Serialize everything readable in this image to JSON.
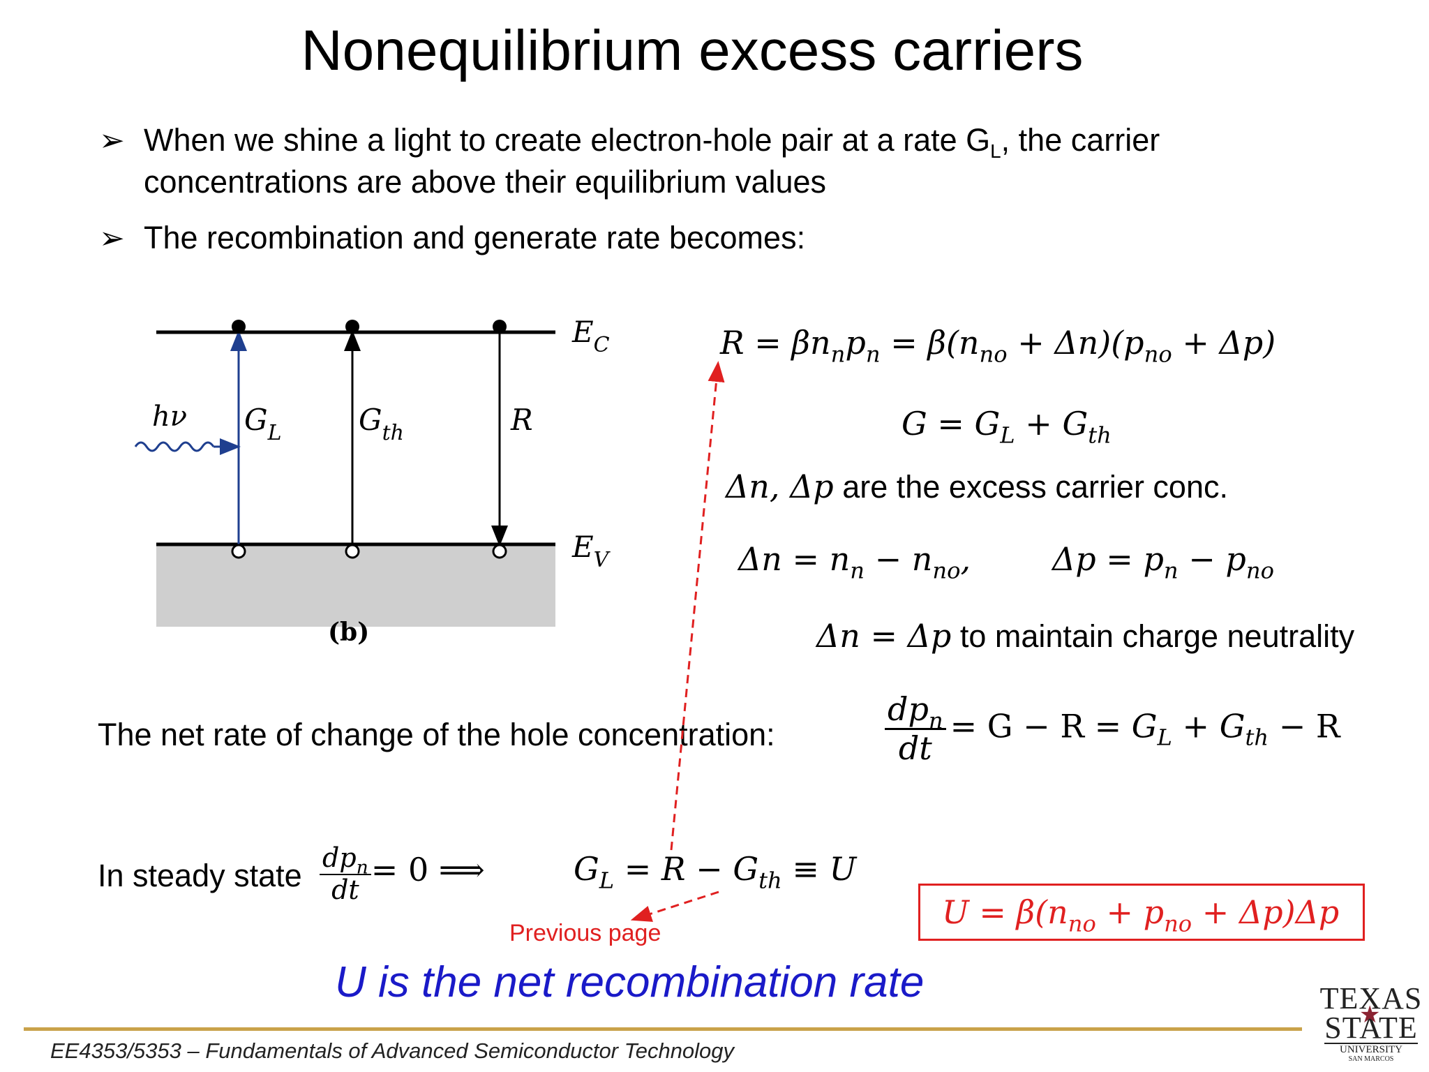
{
  "title": "Nonequilibrium excess carriers",
  "bullets": [
    {
      "line1_pre": "When we shine a light to create electron-hole pair at a rate G",
      "line1_sub": "L",
      "line1_post": ", the carrier",
      "line2": "concentrations are above their equilibrium values"
    },
    {
      "line1": "The recombination and generate rate becomes:"
    }
  ],
  "diagram": {
    "ec": "E",
    "ec_sub": "C",
    "ev": "E",
    "ev_sub": "V",
    "hv": "hν",
    "gl": "G",
    "gl_sub": "L",
    "gth": "G",
    "gth_sub": "th",
    "r": "R",
    "caption": "(b)",
    "colors": {
      "gl_arrow": "#1f3f8f",
      "valence_fill": "#cfcfcf"
    }
  },
  "eq_r": "R = βn",
  "eq_r_pieces": {
    "a": "R = βn",
    "a_sub": "n",
    "b": "p",
    "b_sub": "n",
    "c": " = β(n",
    "c_sub": "no",
    "d": " + Δn)(p",
    "d_sub": "no",
    "e": " + Δp)"
  },
  "eq_g": {
    "a": "G = G",
    "a_sub": "L",
    "b": " + G",
    "b_sub": "th"
  },
  "excess_text": {
    "math": "Δn, Δp",
    "text": " are the excess carrier conc."
  },
  "eq_dn": {
    "a": "Δn = n",
    "a_sub": "n",
    "b": " − n",
    "b_sub": "no",
    "c": ","
  },
  "eq_dp": {
    "a": "Δp = p",
    "a_sub": "n",
    "b": " − p",
    "b_sub": "no"
  },
  "neutral": {
    "math": "Δn = Δp",
    "text": " to maintain charge neutrality"
  },
  "net_rate_text": "The net rate of change of the hole concentration:",
  "net_rate_eq": {
    "num": "dp",
    "num_sub": "n",
    "den": "dt",
    "rhs1": "= G − R = ",
    "gl": "G",
    "gl_sub": "L",
    "mid": " + ",
    "gth": "G",
    "gth_sub": "th",
    "rhs2": " − R"
  },
  "steady": {
    "text": "In steady state",
    "num": "dp",
    "num_sub": "n",
    "den": "dt",
    "rhs": "= 0 ⟹"
  },
  "steady_eq": {
    "a": "G",
    "a_sub": "L",
    "b": " = R − G",
    "b_sub": "th",
    "c": " ≡ U"
  },
  "boxed_eq": {
    "a": "U = β(n",
    "a_sub": "no",
    "b": " + p",
    "b_sub": "no",
    "c": " + Δp)Δp"
  },
  "previous_page": "Previous page",
  "net_recomb": "U is the net recombination rate",
  "footer_course": "EE4353/5353",
  "footer_dash": " – ",
  "footer_title": "Fundamentals of Advanced Semiconductor Technology",
  "logo": {
    "line1": "TEXAS",
    "line2": "STATE",
    "line3": "UNIVERSITY",
    "line4": "SAN MARCOS"
  },
  "colors": {
    "red": "#e02020",
    "blue": "#1a1ac8",
    "footer_line": "#c9a24a",
    "logo_star": "#8b2332"
  }
}
